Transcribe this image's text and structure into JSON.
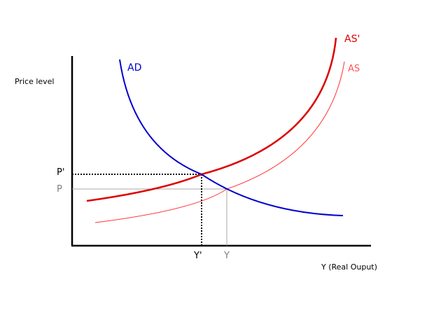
{
  "labels": {
    "y_axis": "Price level",
    "x_axis": "Y (Real Ouput)",
    "ad": "AD",
    "as": "AS",
    "as_shifted": "AS'",
    "p": "P",
    "p_prime": "P'",
    "y": "Y",
    "y_prime": "Y'"
  },
  "colors": {
    "axis": "#000000",
    "ad": "#0000cc",
    "as": "#ff3333",
    "as_shifted": "#dd0000",
    "guide_original": "#aaaaaa",
    "guide_new": "#000000",
    "label_original": "#808080",
    "background": "#ffffff"
  }
}
